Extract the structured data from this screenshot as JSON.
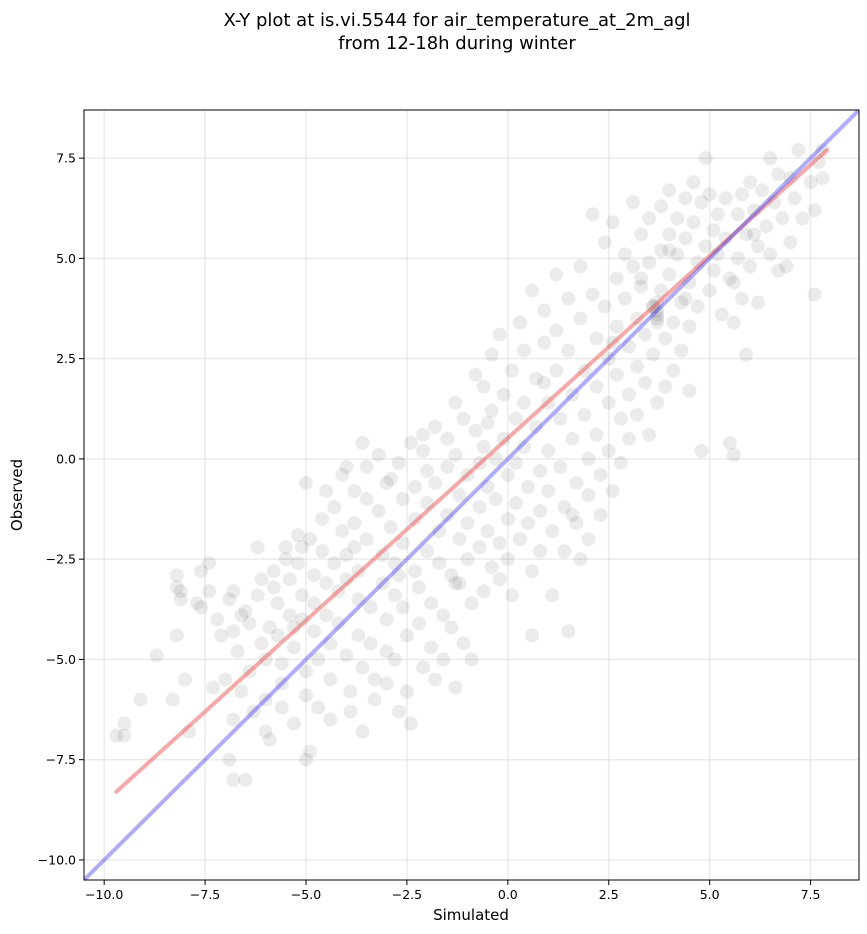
{
  "chart_data": {
    "type": "scatter",
    "title_lines": [
      "X-Y plot at is.vi.5544 for air_temperature_at_2m_agl",
      "from 12-18h during winter"
    ],
    "xlabel": "Simulated",
    "ylabel": "Observed",
    "xlim": [
      -10.5,
      8.7
    ],
    "ylim": [
      -10.5,
      8.7
    ],
    "x_ticks": [
      -10.0,
      -7.5,
      -5.0,
      -2.5,
      0.0,
      2.5,
      5.0,
      7.5
    ],
    "x_tick_labels": [
      "−10.0",
      "−7.5",
      "−5.0",
      "−2.5",
      "0.0",
      "2.5",
      "5.0",
      "7.5"
    ],
    "y_ticks": [
      -10.0,
      -7.5,
      -5.0,
      -2.5,
      0.0,
      2.5,
      5.0,
      7.5
    ],
    "y_tick_labels": [
      "−10.0",
      "−7.5",
      "−5.0",
      "−2.5",
      "0.0",
      "2.5",
      "5.0",
      "7.5"
    ],
    "grid": true,
    "marker_color": "#000000",
    "marker_alpha": 0.08,
    "points": [
      [
        -9.7,
        -6.9
      ],
      [
        -9.5,
        -6.6
      ],
      [
        -9.5,
        -6.9
      ],
      [
        -9.1,
        -6.0
      ],
      [
        -8.7,
        -4.9
      ],
      [
        -8.3,
        -6.0
      ],
      [
        -8.2,
        -2.9
      ],
      [
        -8.2,
        -3.2
      ],
      [
        -8.1,
        -3.5
      ],
      [
        -8.2,
        -4.4
      ],
      [
        -8.0,
        -5.5
      ],
      [
        -7.9,
        -6.8
      ],
      [
        -7.6,
        -3.7
      ],
      [
        -7.6,
        -2.8
      ],
      [
        -7.4,
        -2.6
      ],
      [
        -7.4,
        -3.3
      ],
      [
        -7.2,
        -4.0
      ],
      [
        -7.1,
        -4.4
      ],
      [
        -7.3,
        -5.7
      ],
      [
        -7.0,
        -5.5
      ],
      [
        -6.9,
        -3.5
      ],
      [
        -6.8,
        -3.3
      ],
      [
        -6.8,
        -4.3
      ],
      [
        -6.7,
        -4.8
      ],
      [
        -6.6,
        -5.8
      ],
      [
        -6.8,
        -6.5
      ],
      [
        -6.9,
        -7.5
      ],
      [
        -6.8,
        -8.0
      ],
      [
        -6.5,
        -8.0
      ],
      [
        -6.5,
        -3.8
      ],
      [
        -6.4,
        -4.1
      ],
      [
        -6.4,
        -5.3
      ],
      [
        -6.3,
        -6.3
      ],
      [
        -6.2,
        -3.4
      ],
      [
        -6.1,
        -3.0
      ],
      [
        -6.1,
        -4.6
      ],
      [
        -6.0,
        -5.0
      ],
      [
        -6.0,
        -6.0
      ],
      [
        -6.0,
        -6.8
      ],
      [
        -5.9,
        -7.0
      ],
      [
        -5.8,
        -2.8
      ],
      [
        -5.8,
        -3.2
      ],
      [
        -5.7,
        -3.6
      ],
      [
        -5.7,
        -4.4
      ],
      [
        -5.6,
        -5.1
      ],
      [
        -5.6,
        -5.6
      ],
      [
        -5.6,
        -6.2
      ],
      [
        -5.5,
        -2.5
      ],
      [
        -5.5,
        -2.2
      ],
      [
        -5.4,
        -3.0
      ],
      [
        -5.4,
        -3.9
      ],
      [
        -5.3,
        -4.2
      ],
      [
        -5.3,
        -4.7
      ],
      [
        -5.3,
        -6.6
      ],
      [
        -5.2,
        -1.9
      ],
      [
        -5.2,
        -2.6
      ],
      [
        -5.1,
        -3.4
      ],
      [
        -5.1,
        -4.0
      ],
      [
        -5.0,
        -5.3
      ],
      [
        -5.0,
        -5.9
      ],
      [
        -5.0,
        -7.5
      ],
      [
        -4.9,
        -7.3
      ],
      [
        -4.9,
        -2.0
      ],
      [
        -4.8,
        -2.9
      ],
      [
        -4.8,
        -3.6
      ],
      [
        -4.8,
        -4.3
      ],
      [
        -4.7,
        -5.0
      ],
      [
        -4.7,
        -6.2
      ],
      [
        -4.6,
        -1.5
      ],
      [
        -4.6,
        -2.3
      ],
      [
        -4.5,
        -3.1
      ],
      [
        -4.5,
        -3.9
      ],
      [
        -4.4,
        -4.6
      ],
      [
        -4.4,
        -5.5
      ],
      [
        -4.4,
        -6.5
      ],
      [
        -4.3,
        -1.2
      ],
      [
        -4.3,
        -2.6
      ],
      [
        -4.2,
        -3.3
      ],
      [
        -4.2,
        -4.1
      ],
      [
        -4.1,
        -0.4
      ],
      [
        -4.1,
        -1.8
      ],
      [
        -4.0,
        -2.4
      ],
      [
        -4.0,
        -3.0
      ],
      [
        -4.0,
        -4.9
      ],
      [
        -3.9,
        -5.8
      ],
      [
        -3.9,
        -6.3
      ],
      [
        -3.8,
        -0.8
      ],
      [
        -3.8,
        -1.6
      ],
      [
        -3.8,
        -2.2
      ],
      [
        -3.7,
        -2.8
      ],
      [
        -3.7,
        -3.5
      ],
      [
        -3.7,
        -4.4
      ],
      [
        -3.6,
        -5.2
      ],
      [
        -3.6,
        -6.8
      ],
      [
        -3.5,
        -0.2
      ],
      [
        -3.5,
        -1.0
      ],
      [
        -3.5,
        -2.0
      ],
      [
        -3.4,
        -3.7
      ],
      [
        -3.4,
        -4.6
      ],
      [
        -3.3,
        -5.5
      ],
      [
        -3.3,
        -6.0
      ],
      [
        -3.2,
        0.1
      ],
      [
        -3.2,
        -1.3
      ],
      [
        -3.1,
        -2.4
      ],
      [
        -3.1,
        -3.1
      ],
      [
        -3.0,
        -4.0
      ],
      [
        -3.0,
        -4.8
      ],
      [
        -3.0,
        -5.6
      ],
      [
        -2.9,
        -0.5
      ],
      [
        -2.9,
        -1.7
      ],
      [
        -2.8,
        -2.6
      ],
      [
        -2.8,
        -3.4
      ],
      [
        -2.8,
        -5.0
      ],
      [
        -2.7,
        -6.3
      ],
      [
        -2.7,
        -0.1
      ],
      [
        -2.6,
        -1.0
      ],
      [
        -2.6,
        -2.1
      ],
      [
        -2.6,
        -3.7
      ],
      [
        -2.5,
        -4.4
      ],
      [
        -2.5,
        -5.8
      ],
      [
        -2.4,
        -6.6
      ],
      [
        -2.4,
        0.4
      ],
      [
        -2.3,
        -0.7
      ],
      [
        -2.3,
        -1.5
      ],
      [
        -2.3,
        -2.8
      ],
      [
        -2.2,
        -3.2
      ],
      [
        -2.2,
        -4.1
      ],
      [
        -2.1,
        -5.2
      ],
      [
        -2.1,
        0.2
      ],
      [
        -2.0,
        -0.3
      ],
      [
        -2.0,
        -1.1
      ],
      [
        -2.0,
        -2.3
      ],
      [
        -1.9,
        -3.6
      ],
      [
        -1.9,
        -4.7
      ],
      [
        -1.8,
        -5.5
      ],
      [
        -1.8,
        0.8
      ],
      [
        -1.8,
        -0.6
      ],
      [
        -1.7,
        -1.8
      ],
      [
        -1.7,
        -2.6
      ],
      [
        -1.6,
        -3.9
      ],
      [
        -1.6,
        -5.0
      ],
      [
        -1.5,
        0.5
      ],
      [
        -1.5,
        -0.2
      ],
      [
        -1.5,
        -1.4
      ],
      [
        -1.4,
        -2.9
      ],
      [
        -1.4,
        -4.2
      ],
      [
        -1.3,
        -5.7
      ],
      [
        -1.3,
        1.4
      ],
      [
        -1.3,
        0.1
      ],
      [
        -1.2,
        -0.9
      ],
      [
        -1.2,
        -2.0
      ],
      [
        -1.2,
        -3.1
      ],
      [
        -1.1,
        -4.6
      ],
      [
        -1.1,
        1.0
      ],
      [
        -1.0,
        -0.4
      ],
      [
        -1.0,
        -1.6
      ],
      [
        -1.0,
        -2.5
      ],
      [
        -0.9,
        -3.6
      ],
      [
        -0.9,
        -5.0
      ],
      [
        -0.8,
        2.1
      ],
      [
        -0.8,
        0.7
      ],
      [
        -0.7,
        -0.1
      ],
      [
        -0.7,
        -1.2
      ],
      [
        -0.7,
        -2.2
      ],
      [
        -0.6,
        -3.3
      ],
      [
        -0.6,
        1.8
      ],
      [
        -0.6,
        0.3
      ],
      [
        -0.5,
        -0.7
      ],
      [
        -0.5,
        -1.8
      ],
      [
        -0.4,
        -2.7
      ],
      [
        -0.4,
        2.6
      ],
      [
        -0.4,
        1.2
      ],
      [
        -0.3,
        0.0
      ],
      [
        -0.3,
        -1.0
      ],
      [
        -0.2,
        -2.1
      ],
      [
        -0.2,
        -3.0
      ],
      [
        -0.2,
        3.1
      ],
      [
        -0.1,
        1.6
      ],
      [
        -0.1,
        0.5
      ],
      [
        0.0,
        -0.4
      ],
      [
        0.0,
        -1.5
      ],
      [
        0.0,
        -2.5
      ],
      [
        0.1,
        -3.4
      ],
      [
        0.1,
        2.2
      ],
      [
        0.2,
        1.0
      ],
      [
        0.2,
        -0.1
      ],
      [
        0.2,
        -1.1
      ],
      [
        0.3,
        -2.0
      ],
      [
        0.3,
        3.4
      ],
      [
        0.4,
        2.7
      ],
      [
        0.4,
        1.4
      ],
      [
        0.4,
        0.3
      ],
      [
        0.5,
        -0.7
      ],
      [
        0.5,
        -1.6
      ],
      [
        0.6,
        -2.8
      ],
      [
        0.6,
        -4.4
      ],
      [
        0.6,
        4.2
      ],
      [
        0.7,
        2.0
      ],
      [
        0.7,
        0.8
      ],
      [
        0.8,
        -0.3
      ],
      [
        0.8,
        -1.3
      ],
      [
        0.8,
        -2.3
      ],
      [
        0.9,
        3.7
      ],
      [
        0.9,
        2.9
      ],
      [
        1.0,
        1.4
      ],
      [
        1.0,
        0.2
      ],
      [
        1.0,
        -0.8
      ],
      [
        1.1,
        -1.8
      ],
      [
        1.1,
        -3.4
      ],
      [
        1.2,
        4.6
      ],
      [
        1.2,
        3.2
      ],
      [
        1.2,
        2.2
      ],
      [
        1.3,
        1.0
      ],
      [
        1.3,
        -0.2
      ],
      [
        1.4,
        -1.2
      ],
      [
        1.4,
        -2.3
      ],
      [
        1.5,
        -4.3
      ],
      [
        1.5,
        4.0
      ],
      [
        1.5,
        2.7
      ],
      [
        1.6,
        1.6
      ],
      [
        1.6,
        0.5
      ],
      [
        1.7,
        -0.6
      ],
      [
        1.7,
        -1.6
      ],
      [
        1.8,
        -2.5
      ],
      [
        1.8,
        4.8
      ],
      [
        1.8,
        3.5
      ],
      [
        1.9,
        2.2
      ],
      [
        1.9,
        1.1
      ],
      [
        2.0,
        0.0
      ],
      [
        2.0,
        -0.9
      ],
      [
        2.0,
        -2.0
      ],
      [
        2.1,
        6.1
      ],
      [
        2.1,
        4.1
      ],
      [
        2.2,
        3.0
      ],
      [
        2.2,
        1.8
      ],
      [
        2.2,
        0.6
      ],
      [
        2.3,
        -0.4
      ],
      [
        2.3,
        -1.4
      ],
      [
        2.4,
        5.4
      ],
      [
        2.4,
        3.8
      ],
      [
        2.5,
        2.5
      ],
      [
        2.5,
        1.4
      ],
      [
        2.5,
        0.2
      ],
      [
        2.6,
        -0.8
      ],
      [
        2.6,
        5.9
      ],
      [
        2.7,
        4.5
      ],
      [
        2.7,
        3.3
      ],
      [
        2.7,
        2.1
      ],
      [
        2.8,
        1.0
      ],
      [
        2.8,
        -0.1
      ],
      [
        2.9,
        5.1
      ],
      [
        2.9,
        4.0
      ],
      [
        3.0,
        2.8
      ],
      [
        3.0,
        1.6
      ],
      [
        3.0,
        0.5
      ],
      [
        3.1,
        6.4
      ],
      [
        3.1,
        4.8
      ],
      [
        3.2,
        3.5
      ],
      [
        3.2,
        2.3
      ],
      [
        3.2,
        1.1
      ],
      [
        3.3,
        5.6
      ],
      [
        3.3,
        4.3
      ],
      [
        3.4,
        3.1
      ],
      [
        3.4,
        1.9
      ],
      [
        3.5,
        0.6
      ],
      [
        3.5,
        6.0
      ],
      [
        3.5,
        4.9
      ],
      [
        3.6,
        3.8
      ],
      [
        3.6,
        2.6
      ],
      [
        3.7,
        3.7
      ],
      [
        3.7,
        3.5
      ],
      [
        3.7,
        1.4
      ],
      [
        3.8,
        6.3
      ],
      [
        3.8,
        5.2
      ],
      [
        3.8,
        4.2
      ],
      [
        3.9,
        3.0
      ],
      [
        3.9,
        1.8
      ],
      [
        4.0,
        6.7
      ],
      [
        4.0,
        5.6
      ],
      [
        4.0,
        4.6
      ],
      [
        4.1,
        3.4
      ],
      [
        4.1,
        2.2
      ],
      [
        4.2,
        6.0
      ],
      [
        4.2,
        5.1
      ],
      [
        4.3,
        3.9
      ],
      [
        4.3,
        2.7
      ],
      [
        4.4,
        6.5
      ],
      [
        4.4,
        5.5
      ],
      [
        4.5,
        4.4
      ],
      [
        4.5,
        3.3
      ],
      [
        4.5,
        1.7
      ],
      [
        4.6,
        6.9
      ],
      [
        4.6,
        5.9
      ],
      [
        4.7,
        4.9
      ],
      [
        4.7,
        3.8
      ],
      [
        4.8,
        0.2
      ],
      [
        4.8,
        6.4
      ],
      [
        4.9,
        7.5
      ],
      [
        4.9,
        5.3
      ],
      [
        5.0,
        4.2
      ],
      [
        5.0,
        6.6
      ],
      [
        5.1,
        5.7
      ],
      [
        5.1,
        4.7
      ],
      [
        5.2,
        6.1
      ],
      [
        5.2,
        5.1
      ],
      [
        5.3,
        3.6
      ],
      [
        5.4,
        6.5
      ],
      [
        5.4,
        5.5
      ],
      [
        5.5,
        4.5
      ],
      [
        5.5,
        0.4
      ],
      [
        5.6,
        0.1
      ],
      [
        5.6,
        3.4
      ],
      [
        5.7,
        6.1
      ],
      [
        5.7,
        5.0
      ],
      [
        5.8,
        4.0
      ],
      [
        5.8,
        6.6
      ],
      [
        5.9,
        2.6
      ],
      [
        5.9,
        5.6
      ],
      [
        6.0,
        6.9
      ],
      [
        6.0,
        4.8
      ],
      [
        6.1,
        6.2
      ],
      [
        6.2,
        5.3
      ],
      [
        6.2,
        3.9
      ],
      [
        6.3,
        6.7
      ],
      [
        6.4,
        5.8
      ],
      [
        6.5,
        7.5
      ],
      [
        6.5,
        5.1
      ],
      [
        6.6,
        6.4
      ],
      [
        6.7,
        4.7
      ],
      [
        6.7,
        7.1
      ],
      [
        6.8,
        6.0
      ],
      [
        6.9,
        4.8
      ],
      [
        7.0,
        7.0
      ],
      [
        7.0,
        5.4
      ],
      [
        7.1,
        6.5
      ],
      [
        7.2,
        7.7
      ],
      [
        7.3,
        6.0
      ],
      [
        7.5,
        6.9
      ],
      [
        7.6,
        6.2
      ],
      [
        7.6,
        4.1
      ],
      [
        7.7,
        7.4
      ],
      [
        7.8,
        7.7
      ],
      [
        7.8,
        7.0
      ],
      [
        -5.0,
        -0.6
      ],
      [
        -4.5,
        -0.8
      ],
      [
        -3.6,
        0.4
      ],
      [
        -2.7,
        -2.9
      ],
      [
        -1.3,
        -3.1
      ],
      [
        1.6,
        -1.4
      ],
      [
        -8.1,
        -3.3
      ],
      [
        -7.7,
        -3.6
      ],
      [
        -6.6,
        -3.9
      ],
      [
        -5.9,
        -4.2
      ],
      [
        -6.2,
        -2.2
      ],
      [
        -5.1,
        -2.2
      ],
      [
        -4.0,
        -0.2
      ],
      [
        -3.0,
        -0.6
      ],
      [
        -2.1,
        0.6
      ],
      [
        -0.5,
        0.9
      ],
      [
        0.9,
        1.9
      ],
      [
        2.6,
        2.9
      ],
      [
        3.3,
        4.5
      ],
      [
        4.0,
        5.2
      ],
      [
        4.4,
        4.0
      ],
      [
        5.6,
        4.4
      ],
      [
        6.1,
        5.6
      ],
      [
        3.7,
        3.9
      ],
      [
        3.7,
        3.6
      ],
      [
        3.6,
        3.8
      ],
      [
        3.7,
        3.4
      ]
    ],
    "fit_line": {
      "color": "#ef5350",
      "alpha": 0.5,
      "x": [
        -9.7,
        7.9
      ],
      "y": [
        -8.3,
        7.7
      ]
    },
    "identity_line": {
      "color": "#3b3bf5",
      "alpha": 0.42,
      "x": [
        -10.5,
        8.7
      ],
      "y": [
        -10.5,
        8.7
      ]
    }
  }
}
